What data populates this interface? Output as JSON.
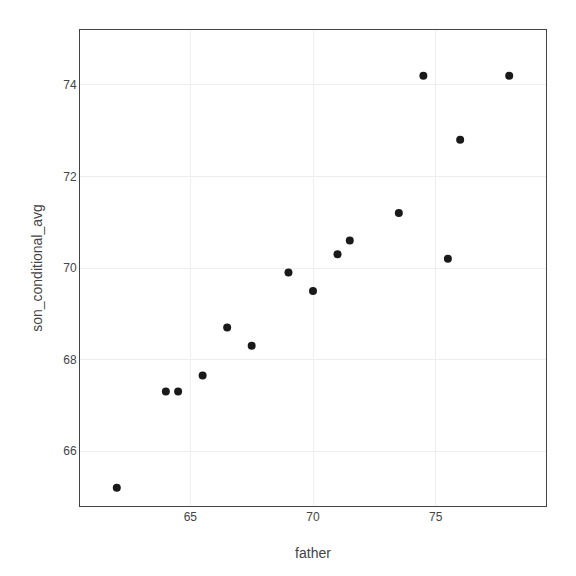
{
  "chart_data": {
    "type": "scatter",
    "x": [
      62,
      64,
      64.5,
      65.5,
      66.5,
      67.5,
      69,
      70,
      71,
      71.5,
      73.5,
      74.5,
      75.5,
      76,
      78
    ],
    "values": [
      65.2,
      67.3,
      67.3,
      67.65,
      68.7,
      68.3,
      69.9,
      69.5,
      70.3,
      70.6,
      71.2,
      74.2,
      70.2,
      72.8,
      74.2
    ],
    "xlabel": "father",
    "ylabel": "son_conditional_avg",
    "xlim": [
      60.5,
      79.5
    ],
    "ylim": [
      64.8,
      75.2
    ],
    "xticks": [
      65,
      70,
      75
    ],
    "yticks": [
      66,
      68,
      70,
      72,
      74
    ],
    "color": "#1a1a1a",
    "grid": true
  }
}
